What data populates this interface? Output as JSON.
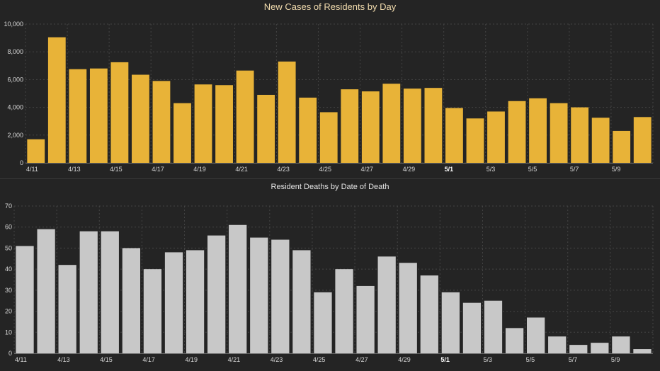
{
  "colors": {
    "background": "#242424",
    "cases_bar": "#e8b338",
    "deaths_bar": "#c8c8c8"
  },
  "chart_data": [
    {
      "id": "cases",
      "type": "bar",
      "title": "New Cases of Residents by Day",
      "xlabel": "",
      "ylabel": "",
      "ylim": [
        0,
        10000
      ],
      "yticks": [
        0,
        2000,
        4000,
        6000,
        8000,
        10000
      ],
      "ytick_labels": [
        "0",
        "2,000",
        "4,000",
        "6,000",
        "8,000",
        "10,000"
      ],
      "grid": true,
      "categories": [
        "4/11",
        "4/12",
        "4/13",
        "4/14",
        "4/15",
        "4/16",
        "4/17",
        "4/18",
        "4/19",
        "4/20",
        "4/21",
        "4/22",
        "4/23",
        "4/24",
        "4/25",
        "4/26",
        "4/27",
        "4/28",
        "4/29",
        "4/30",
        "5/1",
        "5/2",
        "5/3",
        "5/4",
        "5/5",
        "5/6",
        "5/7",
        "5/8",
        "5/9",
        "5/10"
      ],
      "xtick_labels": [
        "4/11",
        "4/13",
        "4/15",
        "4/17",
        "4/19",
        "4/21",
        "4/23",
        "4/25",
        "4/27",
        "4/29",
        "5/1",
        "5/3",
        "5/5",
        "5/7",
        "5/9"
      ],
      "values": [
        1700,
        9050,
        6750,
        6800,
        7250,
        6350,
        5900,
        4300,
        5650,
        5600,
        6650,
        4900,
        7300,
        4700,
        3650,
        5300,
        5150,
        5700,
        5350,
        5400,
        3950,
        3200,
        3700,
        4450,
        4650,
        4300,
        4000,
        3250,
        2300,
        3300
      ]
    },
    {
      "id": "deaths",
      "type": "bar",
      "title": "Resident Deaths by Date of Death",
      "xlabel": "",
      "ylabel": "",
      "ylim": [
        0,
        70
      ],
      "yticks": [
        0,
        10,
        20,
        30,
        40,
        50,
        60,
        70
      ],
      "ytick_labels": [
        "0",
        "10",
        "20",
        "30",
        "40",
        "50",
        "60",
        "70"
      ],
      "grid": true,
      "categories": [
        "4/11",
        "4/12",
        "4/13",
        "4/14",
        "4/15",
        "4/16",
        "4/17",
        "4/18",
        "4/19",
        "4/20",
        "4/21",
        "4/22",
        "4/23",
        "4/24",
        "4/25",
        "4/26",
        "4/27",
        "4/28",
        "4/29",
        "4/30",
        "5/1",
        "5/2",
        "5/3",
        "5/4",
        "5/5",
        "5/6",
        "5/7",
        "5/8",
        "5/9",
        "5/10"
      ],
      "xtick_labels": [
        "4/11",
        "4/13",
        "4/15",
        "4/17",
        "4/19",
        "4/21",
        "4/23",
        "4/25",
        "4/27",
        "4/29",
        "5/1",
        "5/3",
        "5/5",
        "5/7",
        "5/9"
      ],
      "values": [
        51,
        59,
        42,
        58,
        58,
        50,
        40,
        48,
        49,
        56,
        61,
        55,
        54,
        49,
        29,
        40,
        32,
        46,
        43,
        37,
        29,
        24,
        25,
        12,
        17,
        8,
        4,
        5,
        8,
        2
      ]
    }
  ]
}
